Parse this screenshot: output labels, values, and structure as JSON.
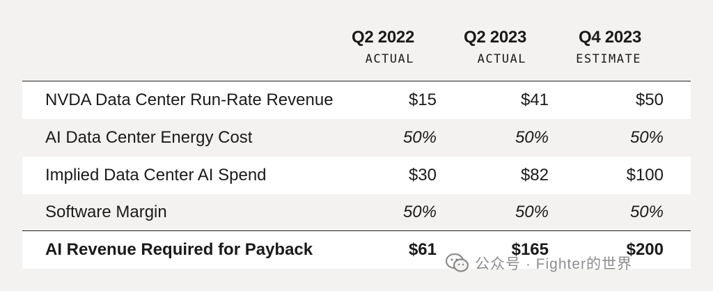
{
  "columns": [
    {
      "period": "Q2 2022",
      "kind": "ACTUAL"
    },
    {
      "period": "Q2 2023",
      "kind": "ACTUAL"
    },
    {
      "period": "Q4 2023",
      "kind": "ESTIMATE"
    }
  ],
  "rows": [
    {
      "label": "NVDA Data Center Run-Rate Revenue",
      "values": [
        "$15",
        "$41",
        "$50"
      ]
    },
    {
      "label": "AI Data Center Energy Cost",
      "values": [
        "50%",
        "50%",
        "50%"
      ]
    },
    {
      "label": "Implied Data Center AI Spend",
      "values": [
        "$30",
        "$82",
        "$100"
      ]
    },
    {
      "label": "Software Margin",
      "values": [
        "50%",
        "50%",
        "50%"
      ]
    },
    {
      "label": "AI Revenue Required for Payback",
      "values": [
        "$61",
        "$165",
        "$200"
      ]
    }
  ],
  "watermark": {
    "text": "公众号 · Fighter的世界",
    "icon": "wechat-icon"
  }
}
